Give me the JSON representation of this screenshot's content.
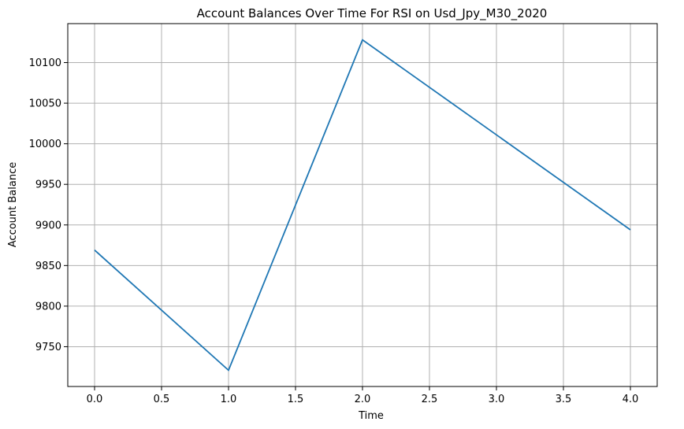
{
  "chart_data": {
    "type": "line",
    "title": "Account Balances Over Time For RSI on Usd_Jpy_M30_2020",
    "xlabel": "Time",
    "ylabel": "Account Balance",
    "x": [
      0,
      1,
      2,
      3,
      4
    ],
    "series": [
      {
        "values": [
          9869,
          9721,
          10128,
          10011,
          9894
        ]
      }
    ],
    "xlim": [
      -0.2,
      4.2
    ],
    "ylim": [
      9701,
      10148
    ],
    "xticks": [
      0.0,
      0.5,
      1.0,
      1.5,
      2.0,
      2.5,
      3.0,
      3.5,
      4.0
    ],
    "xtick_labels": [
      "0.0",
      "0.5",
      "1.0",
      "1.5",
      "2.0",
      "2.5",
      "3.0",
      "3.5",
      "4.0"
    ],
    "yticks": [
      9750,
      9800,
      9850,
      9900,
      9950,
      10000,
      10050,
      10100
    ],
    "ytick_labels": [
      "9750",
      "9800",
      "9850",
      "9900",
      "9950",
      "10000",
      "10050",
      "10100"
    ],
    "grid": true,
    "line_color": "#1f77b4"
  }
}
